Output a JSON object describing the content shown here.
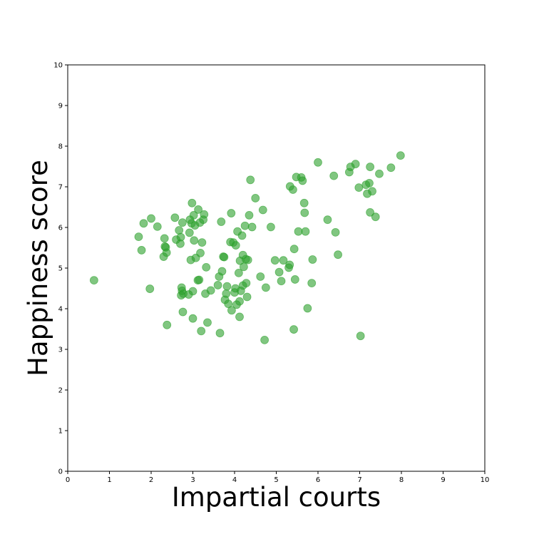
{
  "chart_data": {
    "type": "scatter",
    "xlabel": "Impartial courts",
    "ylabel": "Happiness score",
    "xlim": [
      0,
      10
    ],
    "ylim": [
      0,
      10
    ],
    "xticks": [
      "0",
      "1",
      "2",
      "3",
      "4",
      "5",
      "6",
      "7",
      "8",
      "9",
      "10"
    ],
    "yticks": [
      "0",
      "1",
      "2",
      "3",
      "4",
      "5",
      "6",
      "7",
      "8",
      "9",
      "10"
    ],
    "grid": false,
    "marker_color": "#2ca02c",
    "marker_alpha": 0.6,
    "points": [
      [
        0.63,
        4.7
      ],
      [
        1.7,
        5.77
      ],
      [
        1.77,
        5.44
      ],
      [
        1.82,
        6.1
      ],
      [
        1.97,
        4.49
      ],
      [
        2.0,
        6.22
      ],
      [
        2.15,
        6.02
      ],
      [
        2.3,
        5.28
      ],
      [
        2.32,
        5.73
      ],
      [
        2.33,
        5.53
      ],
      [
        2.35,
        5.51
      ],
      [
        2.37,
        5.38
      ],
      [
        2.38,
        3.6
      ],
      [
        2.57,
        6.24
      ],
      [
        2.6,
        5.7
      ],
      [
        2.67,
        5.93
      ],
      [
        2.7,
        5.6
      ],
      [
        2.71,
        5.76
      ],
      [
        2.72,
        4.33
      ],
      [
        2.73,
        4.52
      ],
      [
        2.74,
        4.44
      ],
      [
        2.75,
        6.12
      ],
      [
        2.76,
        3.92
      ],
      [
        2.77,
        4.37
      ],
      [
        2.9,
        4.35
      ],
      [
        2.92,
        5.87
      ],
      [
        2.93,
        6.19
      ],
      [
        2.95,
        5.2
      ],
      [
        2.97,
        6.1
      ],
      [
        2.98,
        6.6
      ],
      [
        3.0,
        3.76
      ],
      [
        3.0,
        4.43
      ],
      [
        3.02,
        6.3
      ],
      [
        3.03,
        5.68
      ],
      [
        3.05,
        6.05
      ],
      [
        3.07,
        5.25
      ],
      [
        3.12,
        4.7
      ],
      [
        3.13,
        6.44
      ],
      [
        3.15,
        4.71
      ],
      [
        3.17,
        6.12
      ],
      [
        3.18,
        5.37
      ],
      [
        3.2,
        3.45
      ],
      [
        3.22,
        5.63
      ],
      [
        3.25,
        6.19
      ],
      [
        3.27,
        6.32
      ],
      [
        3.3,
        4.37
      ],
      [
        3.32,
        5.02
      ],
      [
        3.35,
        3.66
      ],
      [
        3.43,
        4.45
      ],
      [
        3.6,
        4.58
      ],
      [
        3.63,
        4.79
      ],
      [
        3.65,
        3.4
      ],
      [
        3.68,
        6.14
      ],
      [
        3.7,
        4.92
      ],
      [
        3.73,
        5.28
      ],
      [
        3.75,
        5.27
      ],
      [
        3.77,
        4.22
      ],
      [
        3.8,
        4.37
      ],
      [
        3.82,
        4.55
      ],
      [
        3.85,
        4.12
      ],
      [
        3.9,
        5.64
      ],
      [
        3.92,
        6.35
      ],
      [
        3.93,
        3.96
      ],
      [
        3.97,
        5.63
      ],
      [
        4.0,
        4.4
      ],
      [
        4.02,
        4.5
      ],
      [
        4.03,
        5.56
      ],
      [
        4.05,
        4.1
      ],
      [
        4.07,
        5.9
      ],
      [
        4.1,
        4.88
      ],
      [
        4.12,
        3.8
      ],
      [
        4.12,
        4.18
      ],
      [
        4.13,
        5.18
      ],
      [
        4.15,
        4.44
      ],
      [
        4.18,
        5.8
      ],
      [
        4.2,
        5.32
      ],
      [
        4.2,
        4.57
      ],
      [
        4.22,
        5.03
      ],
      [
        4.25,
        6.04
      ],
      [
        4.27,
        5.22
      ],
      [
        4.28,
        4.63
      ],
      [
        4.3,
        4.29
      ],
      [
        4.32,
        5.2
      ],
      [
        4.35,
        6.3
      ],
      [
        4.38,
        7.17
      ],
      [
        4.42,
        6.01
      ],
      [
        4.5,
        6.72
      ],
      [
        4.62,
        4.79
      ],
      [
        4.68,
        6.43
      ],
      [
        4.72,
        3.23
      ],
      [
        4.75,
        4.52
      ],
      [
        4.87,
        6.01
      ],
      [
        4.97,
        5.19
      ],
      [
        5.07,
        4.9
      ],
      [
        5.12,
        4.68
      ],
      [
        5.17,
        5.19
      ],
      [
        5.3,
        5.01
      ],
      [
        5.32,
        5.08
      ],
      [
        5.33,
        7.01
      ],
      [
        5.4,
        6.93
      ],
      [
        5.42,
        3.49
      ],
      [
        5.43,
        5.47
      ],
      [
        5.45,
        4.72
      ],
      [
        5.48,
        7.24
      ],
      [
        5.53,
        5.9
      ],
      [
        5.6,
        7.23
      ],
      [
        5.63,
        7.15
      ],
      [
        5.67,
        6.6
      ],
      [
        5.68,
        6.36
      ],
      [
        5.7,
        5.9
      ],
      [
        5.75,
        4.01
      ],
      [
        5.85,
        4.63
      ],
      [
        5.87,
        5.21
      ],
      [
        6.0,
        7.6
      ],
      [
        6.23,
        6.19
      ],
      [
        6.38,
        7.27
      ],
      [
        6.42,
        5.88
      ],
      [
        6.48,
        5.33
      ],
      [
        6.75,
        7.36
      ],
      [
        6.78,
        7.49
      ],
      [
        6.9,
        7.56
      ],
      [
        6.98,
        6.98
      ],
      [
        7.02,
        3.33
      ],
      [
        7.15,
        7.05
      ],
      [
        7.18,
        6.83
      ],
      [
        7.23,
        7.09
      ],
      [
        7.25,
        6.37
      ],
      [
        7.25,
        7.49
      ],
      [
        7.3,
        6.89
      ],
      [
        7.38,
        6.26
      ],
      [
        7.47,
        7.32
      ],
      [
        7.75,
        7.47
      ],
      [
        7.98,
        7.77
      ]
    ]
  }
}
